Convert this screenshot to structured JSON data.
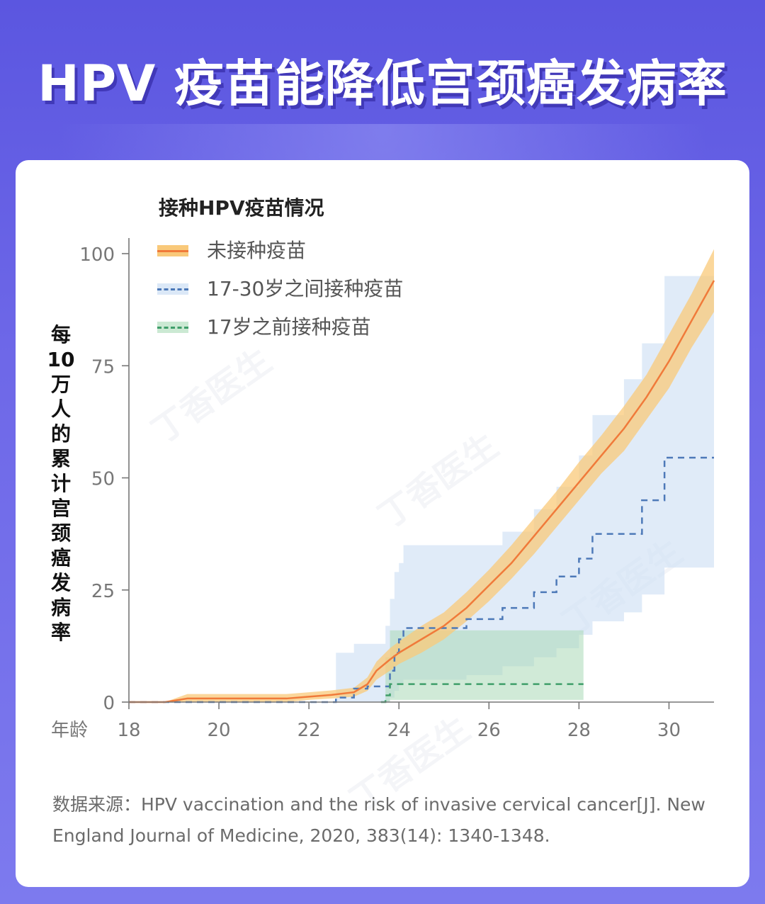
{
  "title": "HPV 疫苗能降低宫颈癌发病率",
  "legend": {
    "title": "接种HPV疫苗情况",
    "items": [
      {
        "label": "未接种疫苗",
        "color": "#f07a3a",
        "band": "#f9c97a",
        "style": "solid"
      },
      {
        "label": "17-30岁之间接种疫苗",
        "color": "#4d79b8",
        "band": "#cfe1f5",
        "style": "dashed"
      },
      {
        "label": "17岁之前接种疫苗",
        "color": "#3f9e6a",
        "band": "#bfe3c9",
        "style": "dashed"
      }
    ]
  },
  "y_axis_label": "每10万人的累计宫颈癌发病率",
  "x_axis_label": "年龄",
  "source": "数据来源：HPV vaccination and the risk of invasive cervical cancer[J]. New England Journal of Medicine, 2020, 383(14): 1340-1348.",
  "watermark": "丁香医生",
  "chart_data": {
    "type": "line",
    "xlabel": "年龄",
    "ylabel": "每10万人的累计宫颈癌发病率",
    "xlim": [
      18,
      31
    ],
    "ylim": [
      0,
      100
    ],
    "xticks": [
      18,
      20,
      22,
      24,
      26,
      28,
      30
    ],
    "yticks": [
      0,
      25,
      50,
      75,
      100
    ],
    "grid": false,
    "legend_position": "top-left",
    "series": [
      {
        "name": "未接种疫苗",
        "style": "solid",
        "x": [
          18.0,
          18.8,
          19.3,
          20,
          21,
          21.5,
          22,
          22.5,
          23.0,
          23.3,
          23.5,
          23.8,
          24.0,
          24.5,
          25.0,
          25.5,
          26.0,
          26.5,
          27.0,
          27.5,
          28.0,
          28.5,
          29.0,
          29.5,
          30.0,
          30.5,
          31.0
        ],
        "y": [
          0,
          0,
          0.8,
          0.8,
          0.8,
          0.8,
          1.2,
          1.6,
          2.2,
          4,
          7,
          9.5,
          11,
          14,
          17,
          21,
          26,
          31,
          37,
          43,
          49,
          55,
          61,
          68,
          76,
          85,
          94
        ],
        "band_low": [
          0,
          0,
          0,
          0,
          0,
          0,
          0.5,
          0.8,
          1.2,
          2.5,
          5,
          7,
          8.5,
          11,
          14,
          18,
          22.5,
          27.5,
          33,
          39,
          45,
          51,
          56,
          63,
          70,
          79,
          87
        ],
        "band_high": [
          0,
          0,
          1.8,
          1.8,
          1.8,
          1.8,
          2.2,
          2.6,
          3.2,
          5.5,
          9,
          12,
          13.5,
          17,
          20,
          24.5,
          29.5,
          35,
          41,
          47,
          53.5,
          59.5,
          66,
          73,
          82,
          91,
          101
        ]
      },
      {
        "name": "17-30岁之间接种疫苗",
        "style": "dashed-step",
        "x": [
          18.0,
          22.6,
          23.0,
          23.3,
          23.7,
          23.8,
          23.9,
          24.0,
          24.1,
          25.0,
          25.5,
          26.3,
          27.0,
          27.5,
          28.0,
          28.3,
          29.0,
          29.4,
          29.9,
          31.0
        ],
        "y": [
          0,
          1,
          3,
          3.5,
          3.5,
          7,
          11,
          14,
          16.5,
          16.5,
          18.5,
          21,
          24.5,
          28,
          32,
          37.5,
          37.5,
          45,
          54.5,
          54.5
        ],
        "band_low": [
          0,
          0,
          0,
          0,
          0,
          1,
          2.5,
          4,
          5,
          5,
          6,
          8,
          10,
          12,
          15,
          18,
          20,
          24,
          30,
          30
        ],
        "band_high": [
          0,
          11,
          13,
          13,
          17,
          23,
          29,
          31,
          35,
          35,
          35,
          38,
          43,
          48,
          55,
          64,
          72,
          80,
          95,
          95
        ]
      },
      {
        "name": "17岁之前接种疫苗",
        "style": "dashed-step",
        "x": [
          23.6,
          23.7,
          23.8,
          24.0,
          28.1
        ],
        "y": [
          0,
          1.5,
          4,
          4,
          4
        ],
        "band_low": [
          0,
          0,
          0.5,
          0.5,
          0.5
        ],
        "band_high": [
          0,
          10,
          16,
          16,
          16
        ]
      }
    ]
  }
}
